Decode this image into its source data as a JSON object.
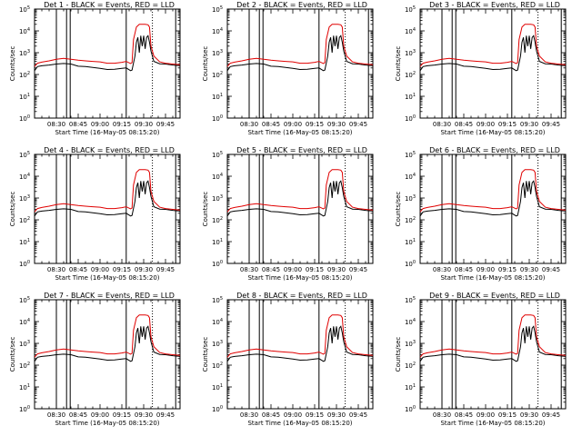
{
  "chart_data": [
    {
      "panel": 1,
      "title": "Det 1 - BLACK = Events, RED = LLD"
    },
    {
      "panel": 2,
      "title": "Det 2 - BLACK = Events, RED = LLD"
    },
    {
      "panel": 3,
      "title": "Det 3 - BLACK = Events, RED = LLD"
    },
    {
      "panel": 4,
      "title": "Det 4 - BLACK = Events, RED = LLD"
    },
    {
      "panel": 5,
      "title": "Det 5 - BLACK = Events, RED = LLD"
    },
    {
      "panel": 6,
      "title": "Det 6 - BLACK = Events, RED = LLD"
    },
    {
      "panel": 7,
      "title": "Det 7 - BLACK = Events, RED = LLD"
    },
    {
      "panel": 8,
      "title": "Det 8 - BLACK = Events, RED = LLD"
    },
    {
      "panel": 9,
      "title": "Det 9 - BLACK = Events, RED = LLD"
    }
  ],
  "shared": {
    "type": "line",
    "xlabel": "Start Time (16-May-05 08:15:20)",
    "ylabel": "Counts/sec",
    "x_tick_labels": [
      "08:30",
      "08:45",
      "09:00",
      "09:15",
      "09:30",
      "09:45"
    ],
    "x_ticks_min": [
      15,
      30,
      45,
      60,
      75,
      90
    ],
    "xlim_min": [
      0,
      100
    ],
    "y_scale": "log",
    "ylim": [
      1,
      100000
    ],
    "y_ticks": [
      1,
      10,
      100,
      1000,
      10000,
      100000
    ],
    "y_tick_labels": [
      "10",
      "10",
      "10",
      "10",
      "10",
      "10"
    ],
    "y_tick_exponents": [
      "0",
      "1",
      "2",
      "3",
      "4",
      "5"
    ],
    "solid_markers_min": [
      15,
      22,
      24.5,
      63,
      97
    ],
    "dotted_markers_min": [
      81
    ],
    "series": [
      {
        "name": "Events",
        "color": "#000000",
        "x": [
          0,
          2,
          5,
          10,
          15,
          20,
          25,
          30,
          35,
          40,
          45,
          50,
          55,
          60,
          63,
          66,
          67,
          69,
          70,
          71,
          72,
          73,
          74,
          75,
          76,
          77,
          78,
          79,
          80,
          82,
          86,
          90,
          95,
          100
        ],
        "y": [
          150,
          230,
          250,
          270,
          300,
          320,
          300,
          240,
          230,
          210,
          190,
          170,
          175,
          190,
          200,
          150,
          160,
          700,
          3000,
          5000,
          1000,
          6000,
          2000,
          6000,
          1500,
          5000,
          6000,
          3000,
          1200,
          400,
          310,
          300,
          270,
          250
        ]
      },
      {
        "name": "LLD",
        "color": "#e00000",
        "x": [
          0,
          2,
          5,
          10,
          15,
          20,
          25,
          30,
          35,
          40,
          45,
          50,
          55,
          60,
          63,
          66,
          67,
          68,
          70,
          72,
          74,
          76,
          78,
          79,
          80,
          82,
          86,
          90,
          95,
          100
        ],
        "y": [
          230,
          330,
          370,
          420,
          500,
          550,
          500,
          450,
          420,
          400,
          380,
          330,
          330,
          360,
          400,
          320,
          350,
          4000,
          15000,
          20000,
          20000,
          20000,
          19000,
          15000,
          2000,
          700,
          380,
          330,
          300,
          280
        ]
      }
    ]
  }
}
